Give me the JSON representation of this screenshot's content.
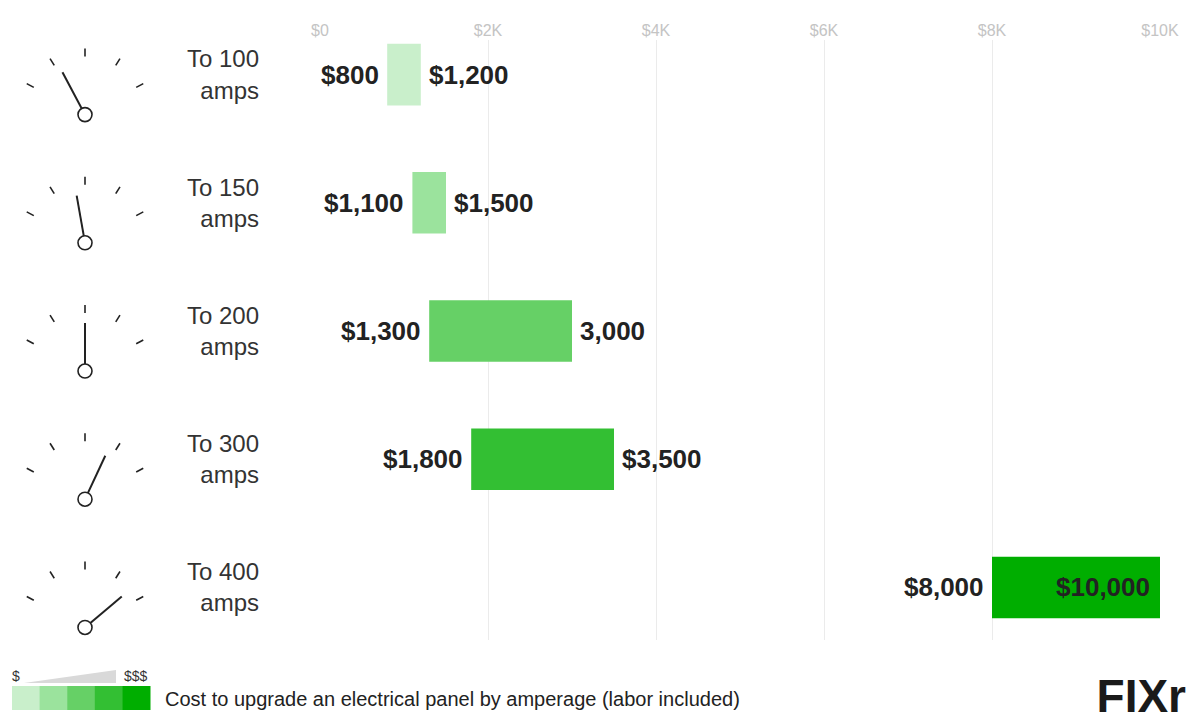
{
  "chart_data": {
    "type": "bar",
    "orientation": "horizontal",
    "categories": [
      "To 100 amps",
      "To 150 amps",
      "To 200 amps",
      "To 300 amps",
      "To 400 amps"
    ],
    "ranges": [
      [
        800,
        1200
      ],
      [
        1100,
        1500
      ],
      [
        1300,
        3000
      ],
      [
        1800,
        3500
      ],
      [
        8000,
        10000
      ]
    ],
    "value_labels": [
      [
        "$800",
        "$1,200"
      ],
      [
        "$1,100",
        "$1,500"
      ],
      [
        "$1,300",
        "3,000"
      ],
      [
        "$1,800",
        "$3,500"
      ],
      [
        "$8,000",
        "$10,000"
      ]
    ],
    "data_labels": true,
    "colors": [
      "#c9efcb",
      "#9be39d",
      "#66d066",
      "#33bf33",
      "#00ae00"
    ],
    "xlim": [
      0,
      10000
    ],
    "xticks": [
      {
        "value": 0,
        "label": "$0"
      },
      {
        "value": 2000,
        "label": "$2K"
      },
      {
        "value": 4000,
        "label": "$4K"
      },
      {
        "value": 6000,
        "label": "$6K"
      },
      {
        "value": 8000,
        "label": "$8K"
      },
      {
        "value": 10000,
        "label": "$10K"
      }
    ],
    "grid": true,
    "caption": "Cost to upgrade an electrical panel by amperage (labor included)",
    "scale_labels": [
      "$",
      "$$$"
    ],
    "logo": "FIXr"
  }
}
